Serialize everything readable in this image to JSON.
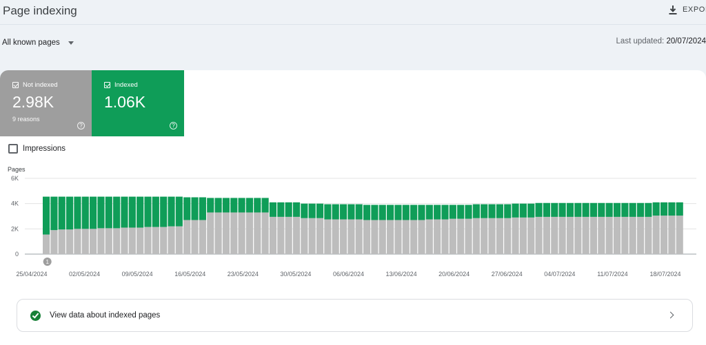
{
  "header": {
    "title": "Page indexing",
    "export_label": "EXPORT",
    "export_icon": "download-icon"
  },
  "filter": {
    "selected": "All known pages"
  },
  "last_updated": {
    "label": "Last updated:",
    "value": "20/07/2024"
  },
  "tiles": {
    "not_indexed": {
      "label": "Not indexed",
      "value": "2.98K",
      "sub": "9 reasons",
      "color": "#9e9e9e"
    },
    "indexed": {
      "label": "Indexed",
      "value": "1.06K",
      "color": "#0f9d58"
    }
  },
  "impressions": {
    "label": "Impressions"
  },
  "annotation": {
    "label": "1"
  },
  "chart_data": {
    "type": "bar",
    "stacked": true,
    "ylabel": "Pages",
    "ylim": [
      0,
      6000
    ],
    "yticks": [
      0,
      2000,
      4000,
      6000
    ],
    "ytick_labels": [
      "0",
      "2K",
      "4K",
      "6K"
    ],
    "grid": true,
    "x_start": "25/04/2024",
    "x_tick_labels": [
      "25/04/2024",
      "02/05/2024",
      "09/05/2024",
      "16/05/2024",
      "23/05/2024",
      "30/05/2024",
      "06/06/2024",
      "13/06/2024",
      "20/06/2024",
      "27/06/2024",
      "04/07/2024",
      "11/07/2024",
      "18/07/2024"
    ],
    "series": [
      {
        "name": "Not indexed",
        "color": "#bdbdbd",
        "values": [
          1550,
          1900,
          1950,
          1950,
          2000,
          2000,
          2000,
          2050,
          2050,
          2050,
          2100,
          2100,
          2100,
          2150,
          2150,
          2150,
          2200,
          2200,
          2700,
          2700,
          2700,
          3300,
          3300,
          3300,
          3300,
          3300,
          3300,
          3300,
          3300,
          2950,
          2950,
          2950,
          2950,
          2850,
          2850,
          2850,
          2750,
          2750,
          2750,
          2750,
          2750,
          2700,
          2700,
          2700,
          2700,
          2700,
          2700,
          2700,
          2700,
          2750,
          2750,
          2750,
          2800,
          2800,
          2800,
          2850,
          2850,
          2850,
          2850,
          2850,
          2900,
          2900,
          2900,
          2950,
          2950,
          2950,
          2950,
          2950,
          2950,
          2950,
          2950,
          2950,
          2950,
          2950,
          2950,
          2950,
          2950,
          2950,
          3050,
          3050,
          3050,
          3050
        ]
      },
      {
        "name": "Indexed",
        "color": "#0f9d58",
        "values": [
          3000,
          2650,
          2600,
          2600,
          2550,
          2550,
          2550,
          2500,
          2500,
          2500,
          2450,
          2450,
          2450,
          2400,
          2400,
          2400,
          2350,
          2350,
          1800,
          1800,
          1800,
          1150,
          1150,
          1150,
          1150,
          1150,
          1150,
          1150,
          1150,
          1150,
          1150,
          1150,
          1150,
          1150,
          1150,
          1150,
          1200,
          1200,
          1200,
          1200,
          1200,
          1200,
          1200,
          1200,
          1200,
          1200,
          1200,
          1200,
          1200,
          1150,
          1150,
          1150,
          1100,
          1100,
          1100,
          1100,
          1100,
          1100,
          1100,
          1100,
          1100,
          1100,
          1100,
          1100,
          1100,
          1100,
          1100,
          1100,
          1100,
          1100,
          1100,
          1100,
          1100,
          1100,
          1100,
          1100,
          1100,
          1100,
          1050,
          1050,
          1050,
          1050
        ]
      }
    ]
  },
  "view_link": {
    "label": "View data about indexed pages"
  }
}
